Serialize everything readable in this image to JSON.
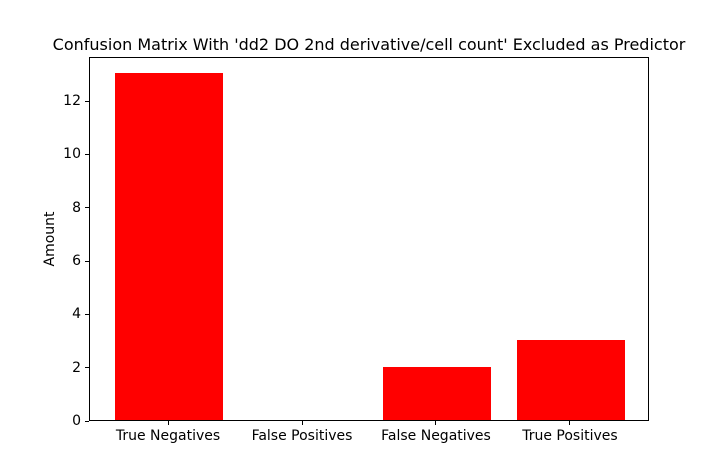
{
  "chart_data": {
    "type": "bar",
    "title": "Confusion Matrix With 'dd2 DO 2nd derivative/cell count' Excluded as Predictor",
    "categories": [
      "True Negatives",
      "False Positives",
      "False Negatives",
      "True Positives"
    ],
    "values": [
      13,
      0,
      2,
      3
    ],
    "xlabel": "",
    "ylabel": "Amount",
    "xlim": [
      -0.59,
      3.59
    ],
    "ylim": [
      0,
      13.65
    ],
    "yticks": [
      0,
      2,
      4,
      6,
      8,
      10,
      12
    ],
    "bar_width_units": 0.8,
    "bar_color": "#ff0000",
    "axes_edge_color": "#000000",
    "text_color": "#000000",
    "background_color": "#ffffff",
    "grid": false,
    "legend": "none"
  }
}
